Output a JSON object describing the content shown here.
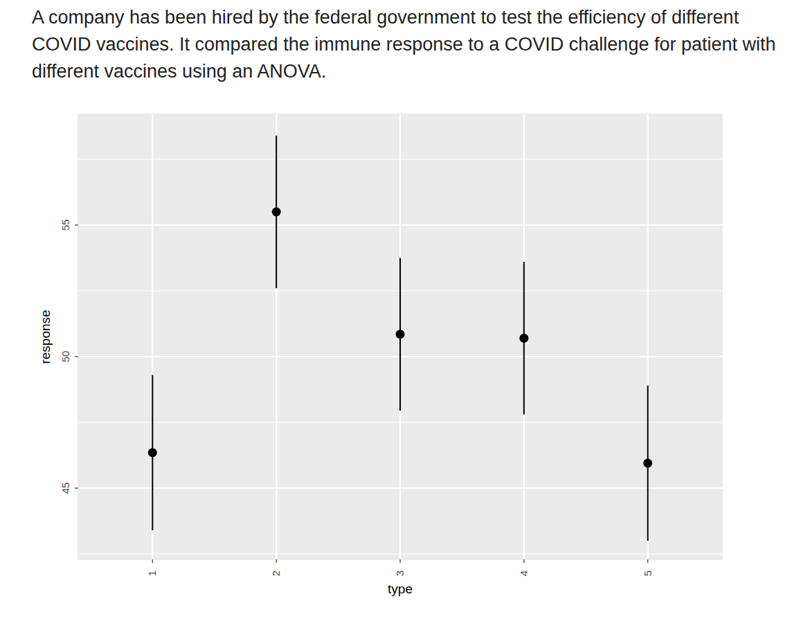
{
  "chart_data": {
    "type": "scatter",
    "title": "A company has been hired by the federal government to test the efficiency of different COVID vaccines. It compared the immune response to a COVID challenge for patient with different vaccines using an ANOVA.",
    "x_label": "type",
    "y_label": "response",
    "categories": [
      "1",
      "2",
      "3",
      "4",
      "5"
    ],
    "values": [
      46.35,
      55.5,
      50.85,
      50.7,
      45.95
    ],
    "errors": [
      2.95,
      2.9,
      2.9,
      2.9,
      2.95
    ],
    "color": "#000000",
    "ylim": [
      42.29,
      59.21
    ],
    "yticks": [
      45,
      50,
      55
    ],
    "grid": true
  }
}
